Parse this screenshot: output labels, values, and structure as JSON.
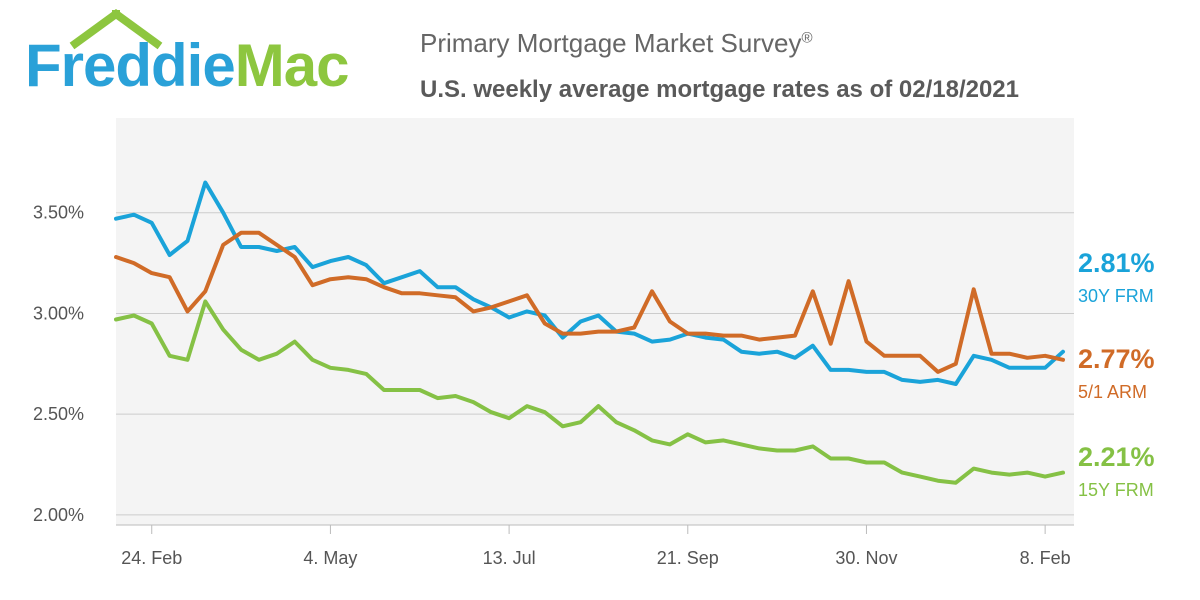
{
  "brand": {
    "part1": "Freddie",
    "part2": "Mac",
    "color1": "#2aa1d8",
    "color2": "#8dc63f"
  },
  "header": {
    "title": "Primary Mortgage Market Survey",
    "title_mark": "®",
    "subtitle": "U.S. weekly average mortgage rates as of 02/18/2021"
  },
  "chart_data": {
    "type": "line",
    "x_tick_labels": [
      "24. Feb",
      "4. May",
      "13. Jul",
      "21. Sep",
      "30. Nov",
      "8. Feb"
    ],
    "y_tick_labels": [
      "2.00%",
      "2.50%",
      "3.00%",
      "3.50%"
    ],
    "ylim": [
      1.95,
      3.97
    ],
    "grid": true,
    "series": [
      {
        "name": "30Y FRM",
        "end_value": "2.81%",
        "color": "#1aa3d9",
        "values": [
          3.47,
          3.49,
          3.45,
          3.29,
          3.36,
          3.65,
          3.5,
          3.33,
          3.33,
          3.31,
          3.33,
          3.23,
          3.26,
          3.28,
          3.24,
          3.15,
          3.18,
          3.21,
          3.13,
          3.13,
          3.07,
          3.03,
          2.98,
          3.01,
          2.99,
          2.88,
          2.96,
          2.99,
          2.91,
          2.9,
          2.86,
          2.87,
          2.9,
          2.88,
          2.87,
          2.81,
          2.8,
          2.81,
          2.78,
          2.84,
          2.72,
          2.72,
          2.71,
          2.71,
          2.67,
          2.66,
          2.67,
          2.65,
          2.79,
          2.77,
          2.73,
          2.73,
          2.73,
          2.81
        ]
      },
      {
        "name": "5/1 ARM",
        "end_value": "2.77%",
        "color": "#d06b27",
        "values": [
          3.28,
          3.25,
          3.2,
          3.18,
          3.01,
          3.11,
          3.34,
          3.4,
          3.4,
          3.34,
          3.28,
          3.14,
          3.17,
          3.18,
          3.17,
          3.13,
          3.1,
          3.1,
          3.09,
          3.08,
          3.01,
          3.03,
          3.06,
          3.09,
          2.95,
          2.9,
          2.9,
          2.91,
          2.91,
          2.93,
          3.11,
          2.96,
          2.9,
          2.9,
          2.89,
          2.89,
          2.87,
          2.88,
          2.89,
          3.11,
          2.85,
          3.16,
          2.86,
          2.79,
          2.79,
          2.79,
          2.71,
          2.75,
          3.12,
          2.8,
          2.8,
          2.78,
          2.79,
          2.77
        ]
      },
      {
        "name": "15Y FRM",
        "end_value": "2.21%",
        "color": "#85c145",
        "values": [
          2.97,
          2.99,
          2.95,
          2.79,
          2.77,
          3.06,
          2.92,
          2.82,
          2.77,
          2.8,
          2.86,
          2.77,
          2.73,
          2.72,
          2.7,
          2.62,
          2.62,
          2.62,
          2.58,
          2.59,
          2.56,
          2.51,
          2.48,
          2.54,
          2.51,
          2.44,
          2.46,
          2.54,
          2.46,
          2.42,
          2.37,
          2.35,
          2.4,
          2.36,
          2.37,
          2.35,
          2.33,
          2.32,
          2.32,
          2.34,
          2.28,
          2.28,
          2.26,
          2.26,
          2.21,
          2.19,
          2.17,
          2.16,
          2.23,
          2.21,
          2.2,
          2.21,
          2.19,
          2.21
        ]
      }
    ]
  }
}
